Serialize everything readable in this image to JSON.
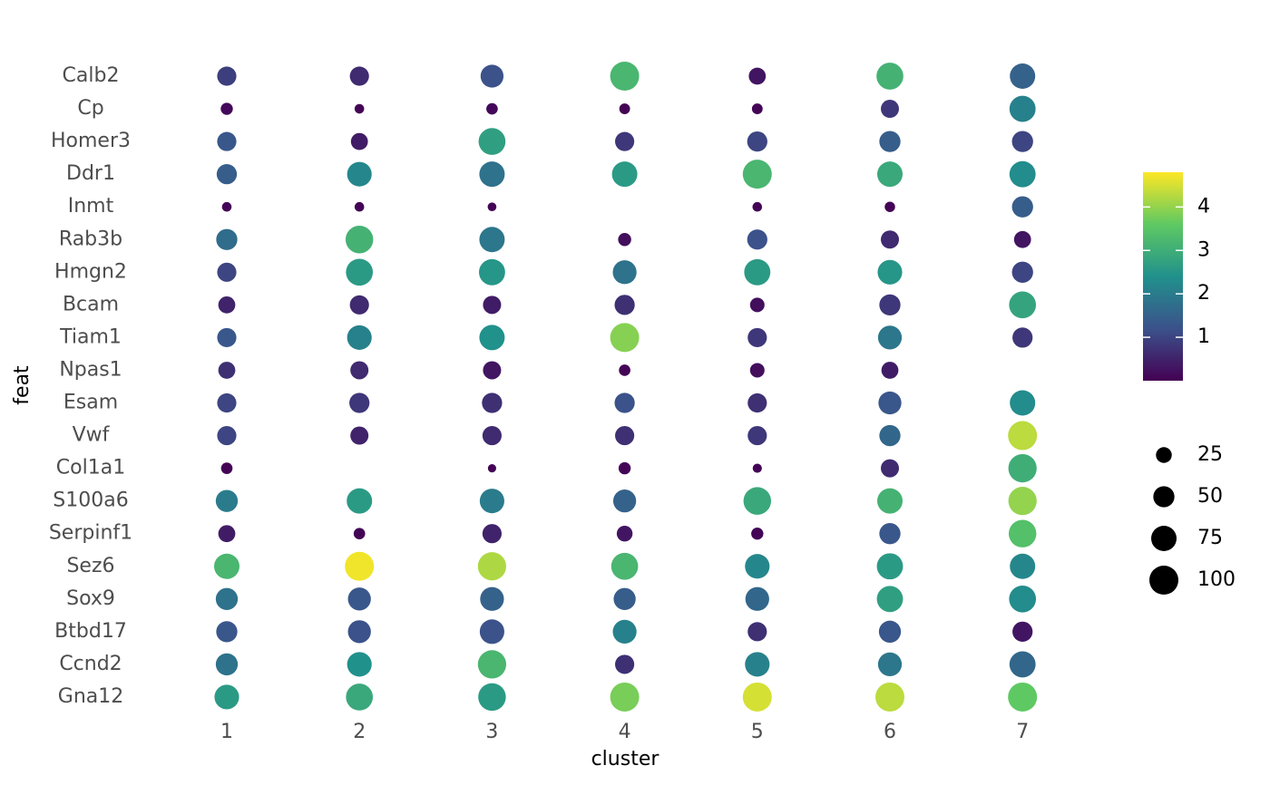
{
  "chart_data": {
    "type": "dot",
    "x_label": "cluster",
    "y_label": "feat",
    "categories": [
      1,
      2,
      3,
      4,
      5,
      6,
      7
    ],
    "features": [
      "Calb2",
      "Cp",
      "Homer3",
      "Ddr1",
      "Inmt",
      "Rab3b",
      "Hmgn2",
      "Bcam",
      "Tiam1",
      "Npas1",
      "Esam",
      "Vwf",
      "Col1a1",
      "S100a6",
      "Serpinf1",
      "Sez6",
      "Sox9",
      "Btbd17",
      "Ccnd2",
      "Gna12"
    ],
    "color_values": [
      [
        0.9,
        0.6,
        1.2,
        3.2,
        0.3,
        3.1,
        1.5
      ],
      [
        0.1,
        0.05,
        0.1,
        0.05,
        0.05,
        0.8,
        2.1
      ],
      [
        1.3,
        0.4,
        2.7,
        0.8,
        1.0,
        1.4,
        1.0
      ],
      [
        1.4,
        2.2,
        1.8,
        2.6,
        3.2,
        2.9,
        2.3
      ],
      [
        0.05,
        0.05,
        0.05,
        null,
        0.05,
        0.05,
        1.4
      ],
      [
        1.7,
        3.1,
        1.9,
        0.2,
        1.2,
        0.6,
        0.3
      ],
      [
        1.0,
        2.6,
        2.5,
        1.8,
        2.6,
        2.5,
        1.0
      ],
      [
        0.5,
        0.6,
        0.4,
        0.7,
        0.2,
        0.8,
        2.8
      ],
      [
        1.3,
        2.1,
        2.4,
        3.9,
        0.8,
        1.9,
        0.8
      ],
      [
        0.7,
        0.6,
        0.3,
        0.05,
        0.2,
        0.4,
        null
      ],
      [
        1.0,
        0.8,
        0.7,
        1.2,
        0.7,
        1.3,
        2.3
      ],
      [
        1.0,
        0.5,
        0.6,
        0.7,
        0.8,
        1.6,
        4.3
      ],
      [
        0.05,
        null,
        0.05,
        0.05,
        0.05,
        0.6,
        3.0
      ],
      [
        2.0,
        2.6,
        2.0,
        1.5,
        2.9,
        3.1,
        4.0
      ],
      [
        0.4,
        0.05,
        0.5,
        0.3,
        0.05,
        1.3,
        3.4
      ],
      [
        3.2,
        4.7,
        4.2,
        3.2,
        2.2,
        2.6,
        2.2
      ],
      [
        1.8,
        1.3,
        1.5,
        1.4,
        1.6,
        2.7,
        2.3
      ],
      [
        1.3,
        1.2,
        1.2,
        2.1,
        0.7,
        1.3,
        0.3
      ],
      [
        1.8,
        2.4,
        3.2,
        0.7,
        2.1,
        1.9,
        1.6
      ],
      [
        2.6,
        2.9,
        2.6,
        3.8,
        4.5,
        4.3,
        3.6
      ]
    ],
    "size_values": [
      [
        40,
        40,
        60,
        100,
        30,
        85,
        75
      ],
      [
        12,
        5,
        10,
        8,
        8,
        35,
        80
      ],
      [
        40,
        30,
        85,
        40,
        45,
        50,
        50
      ],
      [
        45,
        70,
        75,
        75,
        100,
        75,
        80
      ],
      [
        5,
        5,
        3,
        null,
        5,
        7,
        50
      ],
      [
        50,
        90,
        75,
        15,
        45,
        35,
        30
      ],
      [
        40,
        85,
        80,
        65,
        80,
        70,
        50
      ],
      [
        30,
        40,
        35,
        45,
        20,
        50,
        85
      ],
      [
        40,
        70,
        75,
        100,
        40,
        65,
        45
      ],
      [
        30,
        35,
        35,
        10,
        20,
        30,
        null
      ],
      [
        40,
        45,
        45,
        45,
        40,
        60,
        75
      ],
      [
        40,
        35,
        40,
        40,
        40,
        50,
        100
      ],
      [
        10,
        null,
        2,
        12,
        4,
        35,
        95
      ],
      [
        55,
        75,
        70,
        60,
        90,
        75,
        95
      ],
      [
        30,
        10,
        40,
        25,
        12,
        50,
        90
      ],
      [
        75,
        100,
        95,
        85,
        70,
        80,
        75
      ],
      [
        55,
        60,
        65,
        55,
        65,
        80,
        85
      ],
      [
        50,
        60,
        70,
        65,
        40,
        55,
        45
      ],
      [
        55,
        70,
        95,
        40,
        70,
        65,
        80
      ],
      [
        70,
        85,
        90,
        100,
        100,
        100,
        100
      ]
    ],
    "colormap": [
      "#440154",
      "#3b528b",
      "#21918c",
      "#5ec962",
      "#fde725"
    ],
    "clim": [
      0,
      4.8
    ],
    "cticks": [
      1,
      2,
      3,
      4
    ],
    "size_legend": [
      25,
      50,
      75,
      100
    ]
  }
}
